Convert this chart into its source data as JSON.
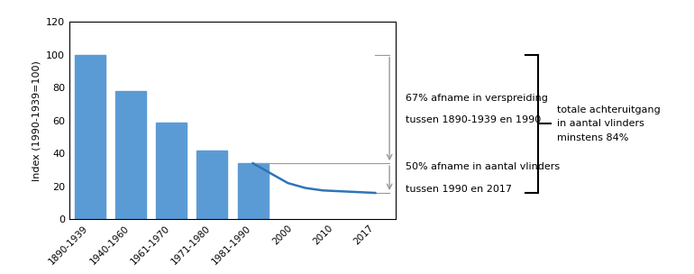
{
  "bar_categories": [
    "1890-1939",
    "1940-1960",
    "1961-1970",
    "1971-1980",
    "1981-1990"
  ],
  "bar_values": [
    100,
    78,
    59,
    42,
    34
  ],
  "bar_color": "#5b9bd5",
  "line_y": [
    34,
    28,
    22,
    19,
    17.5,
    17,
    16.5,
    16
  ],
  "line_color": "#2e75b6",
  "ylabel": "Index (1990-1939=100)",
  "ylim": [
    0,
    120
  ],
  "yticks": [
    0,
    20,
    40,
    60,
    80,
    100,
    120
  ],
  "xtick_labels": [
    "1890-1939",
    "1940-1960",
    "1961-1970",
    "1971-1980",
    "1981-1990",
    "2000",
    "2010",
    "2017"
  ],
  "arrow_color": "#999999",
  "annotation1_line1": "67% afname in verspreiding",
  "annotation1_line2": "tussen 1890-1939 en 1990",
  "annotation2_line1": "50% afname in aantal vlinders",
  "annotation2_line2": "tussen 1990 en 2017",
  "brace_text_line1": "totale achteruitgang",
  "brace_text_line2": "in aantal vlinders",
  "brace_text_line3": "minstens 84%",
  "background_color": "#ffffff"
}
